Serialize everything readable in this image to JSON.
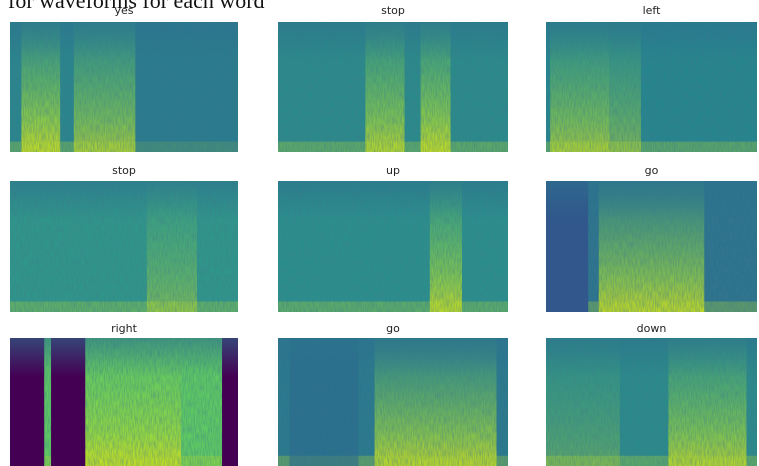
{
  "header": {
    "title": "for waveforms for each word"
  },
  "panels": [
    {
      "title": "yes"
    },
    {
      "title": "stop"
    },
    {
      "title": "left"
    },
    {
      "title": "stop"
    },
    {
      "title": "up"
    },
    {
      "title": "go"
    },
    {
      "title": "right"
    },
    {
      "title": "go"
    },
    {
      "title": "down"
    }
  ]
}
